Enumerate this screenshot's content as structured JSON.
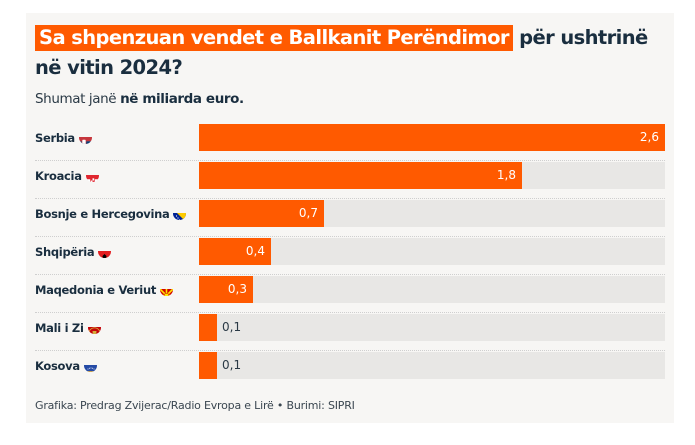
{
  "header": {
    "title_highlight": "Sa shpenzuan vendet e Ballkanit Perëndimor",
    "title_rest": " për ushtrinë në vitin 2024?",
    "subtitle_prefix": "Shumat janë ",
    "subtitle_bold": "në miliarda euro."
  },
  "colors": {
    "bar": "#ff5a00",
    "track": "#e8e7e5",
    "background": "#f7f6f4",
    "text": "#1a2e3f"
  },
  "chart_data": {
    "type": "bar",
    "orientation": "horizontal",
    "title": "Sa shpenzuan vendet e Ballkanit Perëndimor për ushtrinë në vitin 2024?",
    "subtitle": "Shumat janë në miliarda euro.",
    "xlabel": "",
    "ylabel": "",
    "unit": "miliarda euro",
    "xlim": [
      0,
      2.6
    ],
    "grid": false,
    "legend": "none",
    "categories": [
      "Serbia",
      "Kroacia",
      "Bosnje e Hercegovina",
      "Shqipëria",
      "Maqedonia e Veriut",
      "Mali i Zi",
      "Kosova"
    ],
    "values": [
      2.6,
      1.8,
      0.7,
      0.4,
      0.3,
      0.1,
      0.1
    ],
    "value_labels": [
      "2,6",
      "1,8",
      "0,7",
      "0,4",
      "0,3",
      "0,1",
      "0,1"
    ],
    "flag_icons": [
      "serbia-flag-icon",
      "croatia-flag-icon",
      "bosnia-flag-icon",
      "albania-flag-icon",
      "north-macedonia-flag-icon",
      "montenegro-flag-icon",
      "kosovo-flag-icon"
    ]
  },
  "footer": {
    "credit": "Grafika: Predrag Zvijerac/Radio Evropa e Lirë • Burimi: SIPRI"
  }
}
